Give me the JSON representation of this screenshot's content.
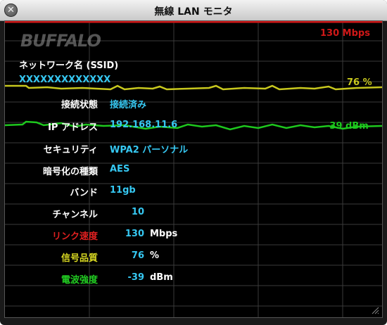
{
  "window": {
    "title": "無線 LAN モニタ"
  },
  "brand": "BUFFALO",
  "graph": {
    "link_speed_label": "130 Mbps",
    "quality_label": "76 %",
    "signal_label": "-39 dBm",
    "colors": {
      "link": "#d01818",
      "quality": "#c8c81e",
      "signal": "#1ec81e"
    }
  },
  "network": {
    "ssid_label": "ネットワーク名 (SSID)",
    "ssid_value": "XXXXXXXXXXXXX"
  },
  "rows": [
    {
      "label": "接続状態",
      "value": "接続済み"
    },
    {
      "label": "IP アドレス",
      "value": "192.168.11.6"
    },
    {
      "label": "セキュリティ",
      "value": "WPA2 パーソナル"
    },
    {
      "label": "暗号化の種類",
      "value": "AES"
    },
    {
      "label": "バンド",
      "value": "11gb"
    },
    {
      "label": "チャンネル",
      "value": "10"
    }
  ],
  "metrics": [
    {
      "label": "リンク速度",
      "value": "130",
      "unit": "Mbps",
      "color": "#e02020"
    },
    {
      "label": "信号品質",
      "value": "76",
      "unit": "%",
      "color": "#d8d822"
    },
    {
      "label": "電波強度",
      "value": "-39",
      "unit": "dBm",
      "color": "#22cc22"
    }
  ]
}
